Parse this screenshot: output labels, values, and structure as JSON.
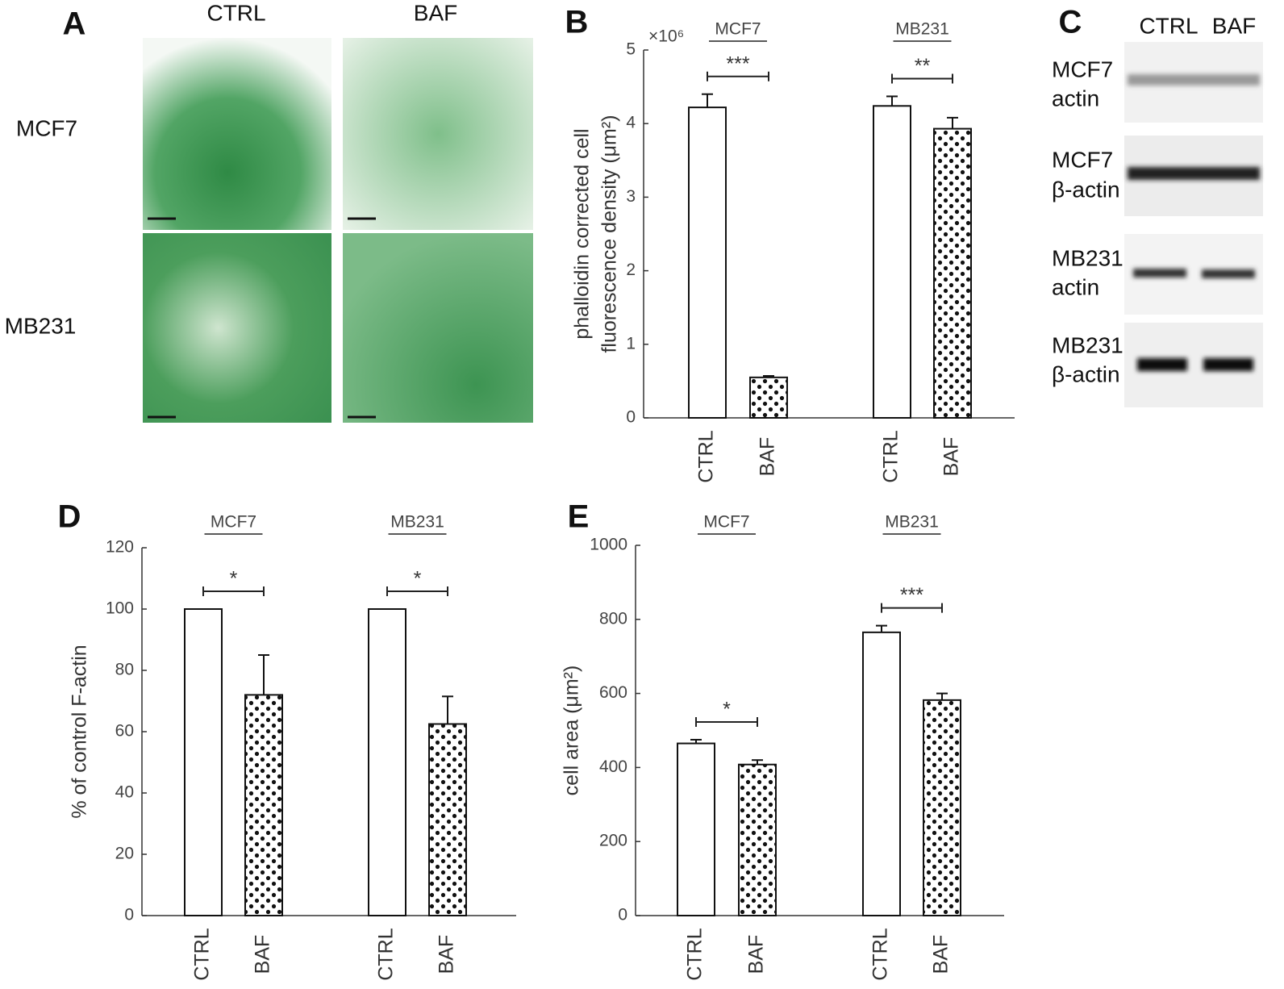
{
  "panel_a": {
    "letter": "A",
    "columns": [
      "CTRL",
      "BAF"
    ],
    "rows": [
      "MCF7",
      "MB231"
    ]
  },
  "panel_c": {
    "letter": "C",
    "columns": [
      "CTRL",
      "BAF"
    ],
    "rows": [
      [
        "MCF7",
        "actin"
      ],
      [
        "MCF7",
        "β-actin"
      ],
      [
        "MB231",
        "actin"
      ],
      [
        "MB231",
        "β-actin"
      ]
    ]
  },
  "chart_data": [
    {
      "type": "bar",
      "panel": "B",
      "ylabel": [
        "phalloidin corrected cell",
        "fluorescence density (μm²)"
      ],
      "multiplier": "×10⁶",
      "groups": [
        "MCF7",
        "MB231"
      ],
      "significance": [
        "***",
        "**"
      ],
      "categories": [
        "CTRL",
        "BAF",
        "CTRL",
        "BAF"
      ],
      "values": [
        4.22,
        0.55,
        4.24,
        3.93
      ],
      "errors": [
        0.18,
        0.02,
        0.13,
        0.15
      ],
      "patterns": [
        "open",
        "dots",
        "open",
        "dots"
      ],
      "ylim": [
        0,
        5
      ],
      "yticks": [
        0,
        1,
        2,
        3,
        4,
        5
      ]
    },
    {
      "type": "bar",
      "panel": "D",
      "ylabel": [
        "% of control F-actin"
      ],
      "groups": [
        "MCF7",
        "MB231"
      ],
      "significance": [
        "*",
        "*"
      ],
      "categories": [
        "CTRL",
        "BAF",
        "CTRL",
        "BAF"
      ],
      "values": [
        100,
        72,
        100,
        62.5
      ],
      "errors": [
        0,
        13,
        0,
        9
      ],
      "patterns": [
        "open",
        "dots",
        "open",
        "dots"
      ],
      "ylim": [
        0,
        120
      ],
      "yticks": [
        0,
        20,
        40,
        60,
        80,
        100,
        120
      ]
    },
    {
      "type": "bar",
      "panel": "E",
      "ylabel": [
        "cell area (μm²)"
      ],
      "groups": [
        "MCF7",
        "MB231"
      ],
      "significance": [
        "*",
        "***"
      ],
      "categories": [
        "CTRL",
        "BAF",
        "CTRL",
        "BAF"
      ],
      "values": [
        465,
        408,
        765,
        582
      ],
      "errors": [
        10,
        12,
        18,
        18
      ],
      "patterns": [
        "open",
        "dots",
        "open",
        "dots"
      ],
      "ylim": [
        0,
        1000
      ],
      "yticks": [
        0,
        200,
        400,
        600,
        800,
        1000
      ]
    }
  ]
}
